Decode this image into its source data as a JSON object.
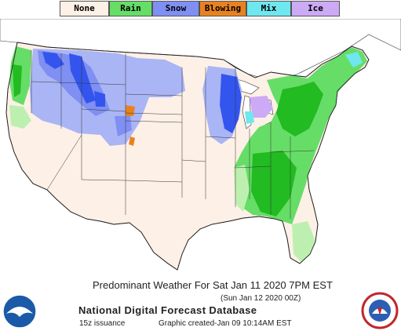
{
  "legend": [
    {
      "label": "None",
      "color": "#fdf0e6"
    },
    {
      "label": "Rain",
      "color": "#66dd66"
    },
    {
      "label": "Snow",
      "color": "#7f8ff2"
    },
    {
      "label": "Blowing",
      "color": "#e8821e"
    },
    {
      "label": "Mix",
      "color": "#6fe7ee"
    },
    {
      "label": "Ice",
      "color": "#ccaaf5"
    }
  ],
  "colors": {
    "none": "#fdf0e6",
    "rain_light": "#bdf0b0",
    "rain": "#66dd66",
    "rain_heavy": "#22bb22",
    "snow_light": "#aab5f5",
    "snow": "#7f8ff2",
    "snow_heavy": "#3355ee",
    "blowing": "#e8821e",
    "mix": "#6fe7ee",
    "ice": "#ccaaf5",
    "water": "#ffffff",
    "borders": "#222222"
  },
  "caption": {
    "title": "Predominant Weather For Sat Jan 11 2020  7PM EST",
    "subtitle": "(Sun Jan 12 2020 00Z)",
    "database": "National Digital Forecast Database",
    "issuance": "15z issuance",
    "created": "Graphic created-Jan 09 10:14AM EST"
  },
  "logos": {
    "left": {
      "name": "noaa-logo",
      "text": "NOAA"
    },
    "right": {
      "name": "nws-logo",
      "text": "NATIONAL WEATHER SERVICE"
    }
  }
}
